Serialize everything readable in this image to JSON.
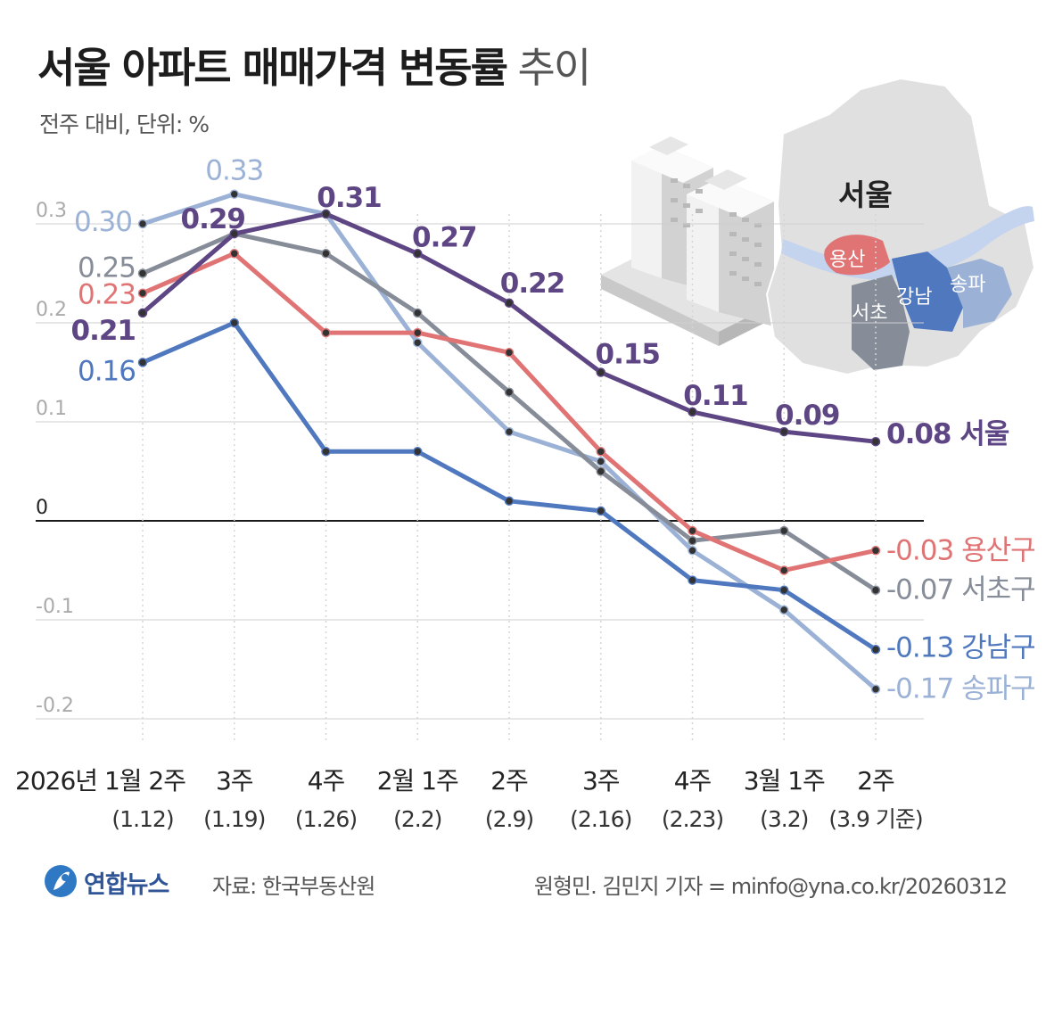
{
  "header": {
    "title_bold": "서울 아파트 매매가격 변동률",
    "title_light": "추이",
    "subtitle": "전주 대비, 단위: %"
  },
  "footer": {
    "brand": "연합뉴스",
    "source": "자료: 한국부동산원",
    "credit": "원형민. 김민지 기자 = minfo@yna.co.kr/20260312"
  },
  "map": {
    "label_seoul": "서울",
    "label_yongsan": "용산",
    "label_seocho": "서초",
    "label_gangnam": "강남",
    "label_songpa": "송파"
  },
  "chart_data": {
    "type": "line",
    "ylim": [
      -0.2,
      0.33
    ],
    "y_ticks": [
      {
        "value": 0.3,
        "label": "0.3"
      },
      {
        "value": 0.2,
        "label": "0.2"
      },
      {
        "value": 0.1,
        "label": "0.1"
      },
      {
        "value": 0,
        "label": "0"
      },
      {
        "value": -0.1,
        "label": "-0.1"
      },
      {
        "value": -0.2,
        "label": "-0.2"
      }
    ],
    "categories": [
      {
        "week": "2026년 1월 2주",
        "date": "(1.12)"
      },
      {
        "week": "3주",
        "date": "(1.19)"
      },
      {
        "week": "4주",
        "date": "(1.26)"
      },
      {
        "week": "2월 1주",
        "date": "(2.2)"
      },
      {
        "week": "2주",
        "date": "(2.9)"
      },
      {
        "week": "3주",
        "date": "(2.16)"
      },
      {
        "week": "4주",
        "date": "(2.23)"
      },
      {
        "week": "3월 1주",
        "date": "(3.2)"
      },
      {
        "week": "2주",
        "date": "(3.9 기준)"
      }
    ],
    "series": [
      {
        "name": "송파구",
        "color": "#9bb2d6",
        "values": [
          0.3,
          0.33,
          0.31,
          0.18,
          0.09,
          0.06,
          -0.03,
          -0.09,
          -0.17
        ],
        "end_label": "-0.17 송파구",
        "labels": {
          "0": "0.30",
          "1": "0.33"
        }
      },
      {
        "name": "서초구",
        "color": "#868d98",
        "values": [
          0.25,
          0.29,
          0.27,
          0.21,
          0.13,
          0.05,
          -0.02,
          -0.01,
          -0.07
        ],
        "end_label": "-0.07 서초구",
        "labels": {
          "0": "0.25"
        }
      },
      {
        "name": "용산구",
        "color": "#e07474",
        "values": [
          0.23,
          0.27,
          0.19,
          0.19,
          0.17,
          0.07,
          -0.01,
          -0.05,
          -0.03
        ],
        "end_label": "-0.03 용산구",
        "labels": {
          "0": "0.23"
        }
      },
      {
        "name": "강남구",
        "color": "#4f78bf",
        "values": [
          0.16,
          0.2,
          0.07,
          0.07,
          0.02,
          0.01,
          -0.06,
          -0.07,
          -0.13
        ],
        "end_label": "-0.13 강남구",
        "labels": {
          "0": "0.16"
        }
      },
      {
        "name": "서울",
        "color": "#5e4684",
        "values": [
          0.21,
          0.29,
          0.31,
          0.27,
          0.22,
          0.15,
          0.11,
          0.09,
          0.08
        ],
        "end_label": "0.08 서울",
        "labels": {
          "0": "0.21",
          "1": "0.29",
          "2": "0.31",
          "3": "0.27",
          "4": "0.22",
          "5": "0.15",
          "6": "0.11",
          "7": "0.09"
        }
      }
    ]
  }
}
